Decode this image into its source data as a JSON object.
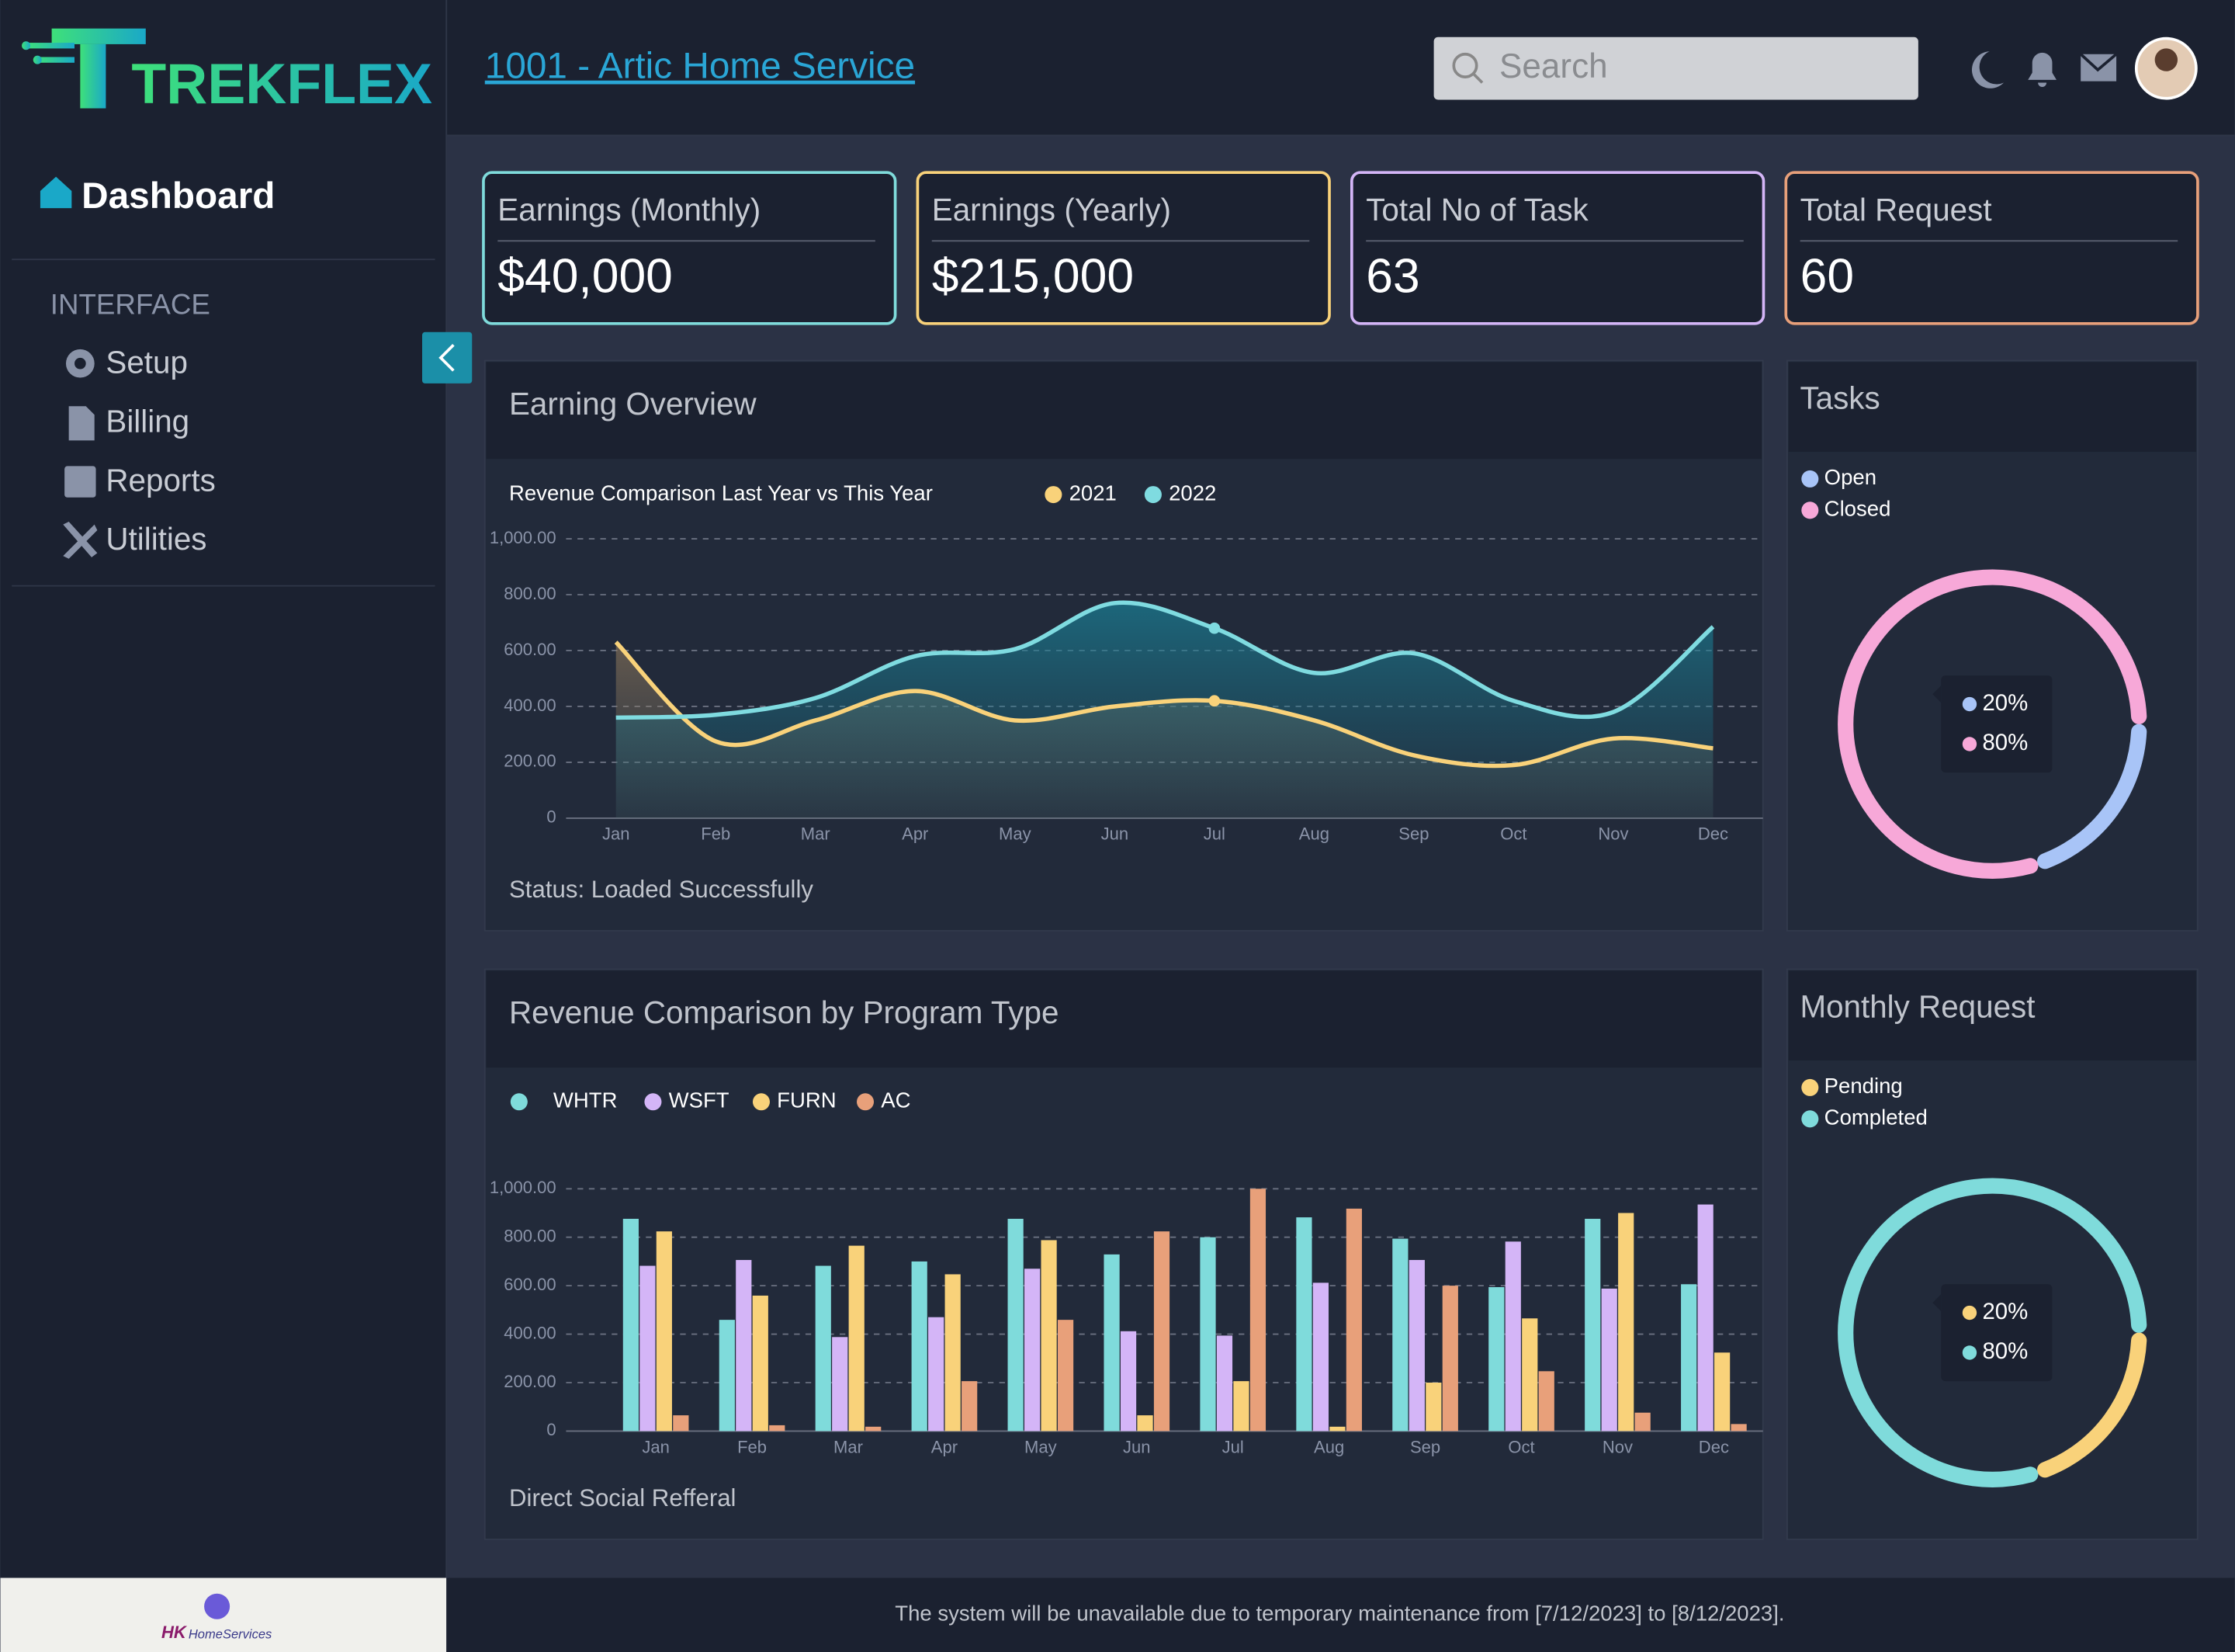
{
  "header": {
    "logo": "TREKFLEX",
    "title": "1001 - Artic Home Service",
    "search_placeholder": "Search"
  },
  "sidebar": {
    "active": "Dashboard",
    "section": "INTERFACE",
    "items": [
      "Setup",
      "Billing",
      "Reports",
      "Utilities"
    ],
    "footer_logo": {
      "mark": "HK",
      "text": "HomeServices"
    }
  },
  "cards": [
    {
      "label": "Earnings (Monthly)",
      "value": "$40,000",
      "color": "#7fdbdb"
    },
    {
      "label": "Earnings (Yearly)",
      "value": "$215,000",
      "color": "#f9d27a"
    },
    {
      "label": "Total No of Task",
      "value": "63",
      "color": "#d4b5f7"
    },
    {
      "label": "Total Request",
      "value": "60",
      "color": "#e8a07a"
    }
  ],
  "chart_data": [
    {
      "type": "area",
      "panel_title": "Earning Overview",
      "title": "Revenue Comparison Last Year vs This Year",
      "status": "Status: Loaded Successfully",
      "categories": [
        "Jan",
        "Feb",
        "Mar",
        "Apr",
        "May",
        "Jun",
        "Jul",
        "Aug",
        "Sep",
        "Oct",
        "Nov",
        "Dec"
      ],
      "series": [
        {
          "name": "2021",
          "color": "#f9d27a",
          "values": [
            630,
            275,
            350,
            455,
            350,
            400,
            420,
            350,
            225,
            190,
            285,
            250
          ]
        },
        {
          "name": "2022",
          "color": "#7fdbe0",
          "values": [
            360,
            370,
            430,
            580,
            605,
            770,
            680,
            520,
            590,
            420,
            380,
            685
          ]
        }
      ],
      "ylim": [
        0,
        1000
      ],
      "yticks": [
        0,
        {
          "value": 200,
          "label": "200.00"
        },
        {
          "value": 400,
          "label": "400.00"
        },
        {
          "value": 600,
          "label": "600.00"
        },
        {
          "value": 800,
          "label": "800.00"
        },
        {
          "value": 1000,
          "label": "1,000.00"
        }
      ],
      "grid": true
    },
    {
      "type": "bar",
      "title": "Revenue Comparison by Program Type",
      "footer": "Direct Social Refferal",
      "categories": [
        "Jan",
        "Feb",
        "Mar",
        "Apr",
        "May",
        "Jun",
        "Jul",
        "Aug",
        "Sep",
        "Oct",
        "Nov",
        "Dec"
      ],
      "series": [
        {
          "name": "WHTR",
          "color": "#7fdbdb",
          "values": [
            876,
            459,
            682,
            700,
            876,
            729,
            800,
            882,
            794,
            594,
            876,
            606
          ]
        },
        {
          "name": "WSFT",
          "color": "#d4b5f7",
          "values": [
            682,
            706,
            388,
            470,
            670,
            412,
            394,
            612,
            706,
            782,
            588,
            935
          ]
        },
        {
          "name": "FURN",
          "color": "#f9d27a",
          "values": [
            824,
            559,
            765,
            647,
            788,
            65,
            206,
            18,
            200,
            465,
            900,
            324
          ]
        },
        {
          "name": "AC",
          "color": "#e8a07a",
          "values": [
            65,
            24,
            18,
            206,
            459,
            824,
            1000,
            918,
            600,
            247,
            76,
            29
          ]
        }
      ],
      "ylim": [
        0,
        1000
      ],
      "yticks": [
        0,
        {
          "value": 200,
          "label": "200.00"
        },
        {
          "value": 400,
          "label": "400.00"
        },
        {
          "value": 600,
          "label": "600.00"
        },
        {
          "value": 800,
          "label": "800.00"
        },
        {
          "value": 1000,
          "label": "1,000.00"
        }
      ],
      "grid": true
    },
    {
      "type": "donut",
      "title": "Tasks",
      "categories": [
        "Open",
        "Closed"
      ],
      "values": [
        20,
        80
      ],
      "value_labels": [
        "20%",
        "80%"
      ],
      "colors": [
        "#a8c4f7",
        "#f7a8d8"
      ]
    },
    {
      "type": "donut",
      "title": "Monthly Request",
      "categories": [
        "Pending",
        "Completed"
      ],
      "values": [
        20,
        80
      ],
      "value_labels": [
        "20%",
        "80%"
      ],
      "colors": [
        "#f9d27a",
        "#7fdbdb"
      ]
    }
  ],
  "footer": {
    "notice": "The system will be unavailable due to temporary maintenance from [7/12/2023] to [8/12/2023]."
  }
}
